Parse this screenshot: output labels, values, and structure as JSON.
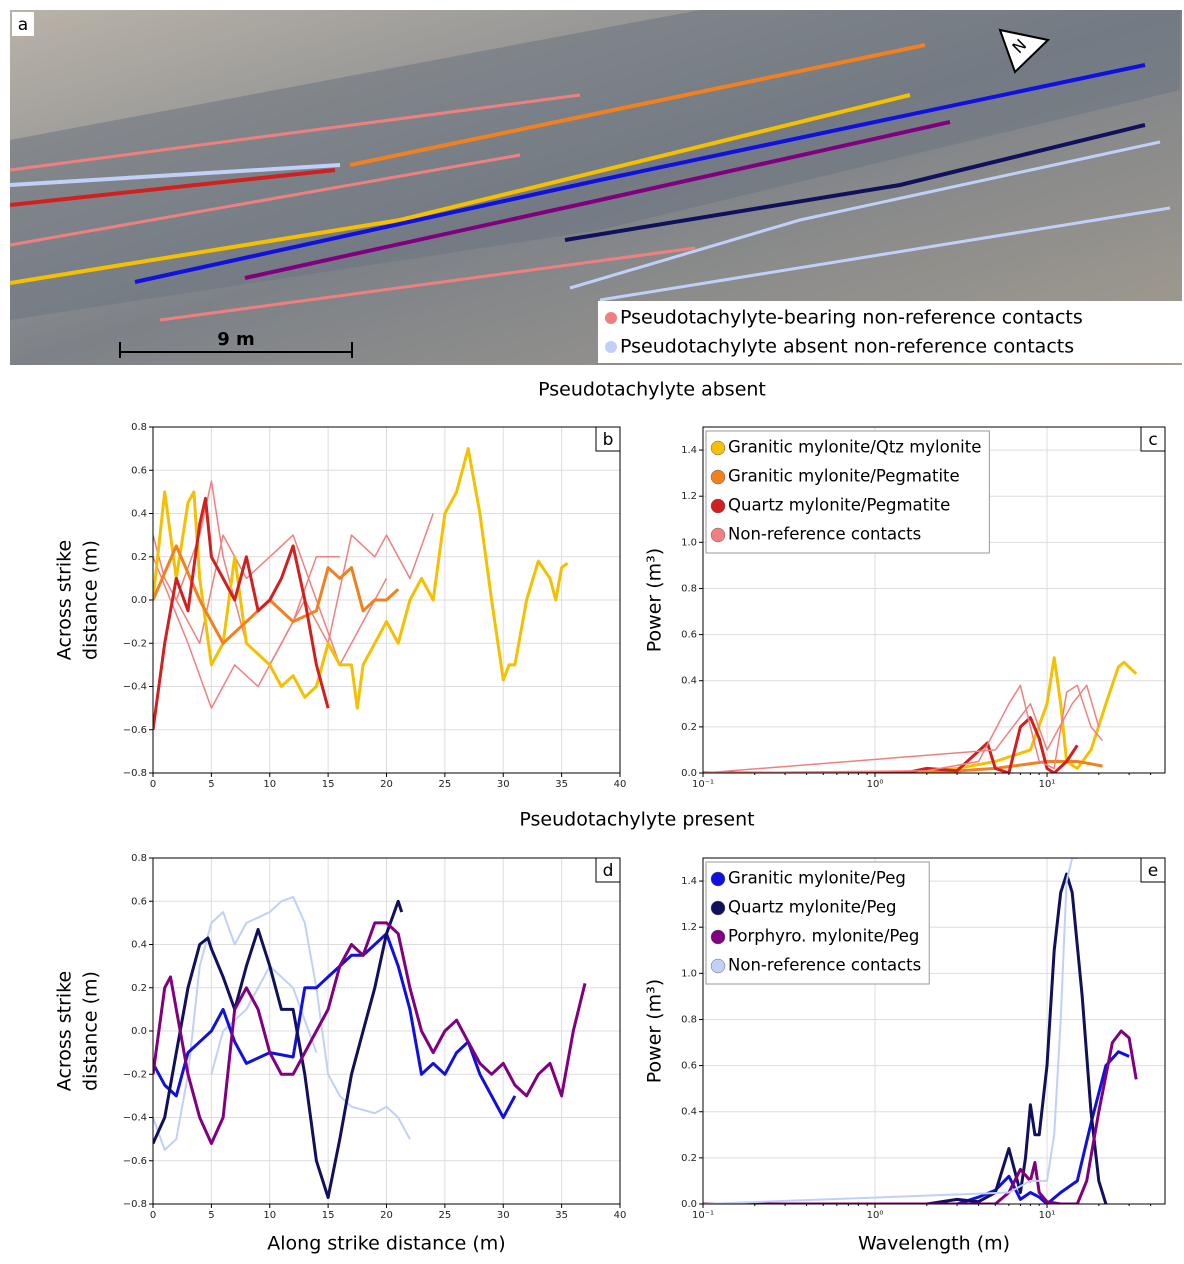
{
  "photo": {
    "label": "a",
    "north": "N",
    "scale": "9 m",
    "legend": [
      {
        "text": "Pseudotachylyte-bearing  non-reference contacts",
        "color": "#f08080"
      },
      {
        "text": "Pseudotachylyte absent non-reference contacts",
        "color": "#c0d0f8"
      }
    ]
  },
  "sections": [
    "Pseudotachylyte absent",
    "Pseudotachylyte present"
  ],
  "chart_data": [
    {
      "type": "line",
      "label": "b",
      "ylabel": [
        "Across strike",
        "distance (m)"
      ],
      "xlim": [
        0,
        40
      ],
      "xticks": [
        0,
        5,
        10,
        15,
        20,
        25,
        30,
        35,
        40
      ],
      "ylim": [
        -0.8,
        0.8
      ],
      "yticks": [
        {
          "value": -0.8,
          "label": "−0.8"
        },
        {
          "value": -0.6,
          "label": "−0.6"
        },
        {
          "value": -0.4,
          "label": "−0.4"
        },
        {
          "value": -0.2,
          "label": "−0.2"
        },
        {
          "value": 0,
          "label": "0.0"
        },
        0.2,
        0.4,
        0.6,
        0.8
      ],
      "grid": true,
      "series": [
        {
          "color": "#f08080",
          "linewidth": 1.5,
          "x": [
            0,
            1,
            2,
            4,
            5,
            6,
            8,
            10,
            12,
            14,
            16
          ],
          "values": [
            0.3,
            0.1,
            0.0,
            0.3,
            0.55,
            0.2,
            -0.2,
            -0.3,
            -0.1,
            0.2,
            0.2
          ]
        },
        {
          "color": "#f08080",
          "linewidth": 1.5,
          "x": [
            0,
            3,
            5,
            7,
            9,
            11,
            13,
            15,
            17,
            19,
            20,
            22,
            24
          ],
          "values": [
            0.2,
            -0.2,
            -0.5,
            -0.3,
            -0.4,
            -0.2,
            0.0,
            -0.2,
            0.3,
            0.2,
            0.3,
            0.1,
            0.4
          ]
        },
        {
          "color": "#f08080",
          "linewidth": 1.5,
          "x": [
            2,
            4,
            6,
            8,
            10,
            12,
            14,
            16,
            18,
            20
          ],
          "values": [
            0.0,
            -0.2,
            0.3,
            0.1,
            0.2,
            0.3,
            0.0,
            -0.3,
            -0.1,
            0.1
          ]
        },
        {
          "color": "#f5c000",
          "linewidth": 3,
          "x": [
            0,
            1,
            2,
            3,
            3.5,
            4,
            5,
            6,
            7,
            8,
            10,
            11,
            12,
            13,
            14,
            15,
            16,
            17,
            17.5,
            18,
            19,
            20,
            21,
            22,
            23,
            24,
            25,
            26,
            27,
            28,
            29,
            30,
            30.5,
            31,
            32,
            33,
            34,
            34.5,
            35,
            35.5
          ],
          "values": [
            0.0,
            0.5,
            0.1,
            0.45,
            0.5,
            0.1,
            -0.3,
            -0.2,
            0.2,
            -0.2,
            -0.3,
            -0.4,
            -0.35,
            -0.45,
            -0.4,
            -0.2,
            -0.3,
            -0.3,
            -0.5,
            -0.3,
            -0.2,
            -0.1,
            -0.2,
            0.0,
            0.1,
            0.0,
            0.4,
            0.5,
            0.7,
            0.4,
            0.0,
            -0.37,
            -0.3,
            -0.3,
            0.0,
            0.18,
            0.1,
            0.0,
            0.15,
            0.17
          ]
        },
        {
          "color": "#f08020",
          "linewidth": 3,
          "x": [
            0,
            2,
            4,
            6,
            8,
            10,
            12,
            14,
            15,
            16,
            17,
            18,
            19,
            20,
            21
          ],
          "values": [
            0.0,
            0.25,
            0.0,
            -0.2,
            -0.1,
            0.0,
            -0.1,
            -0.05,
            0.15,
            0.1,
            0.15,
            -0.05,
            0.0,
            0.0,
            0.05
          ]
        },
        {
          "color": "#d02020",
          "linewidth": 3,
          "x": [
            0,
            1,
            2,
            3,
            4,
            4.5,
            5,
            6,
            7,
            8,
            9,
            10,
            11,
            12,
            13,
            14,
            15
          ],
          "values": [
            -0.6,
            -0.2,
            0.1,
            -0.05,
            0.35,
            0.47,
            0.2,
            0.1,
            0.0,
            0.2,
            -0.05,
            0.0,
            0.1,
            0.25,
            0.0,
            -0.3,
            -0.5
          ]
        }
      ]
    },
    {
      "type": "line",
      "label": "c",
      "ylabel": [
        "Power (m³)"
      ],
      "xscale": "log",
      "legend": "upper left",
      "xlim": [
        0.1,
        48.5
      ],
      "xticks": [
        {
          "value": 0.1,
          "label": "10⁻¹"
        },
        {
          "value": 1,
          "label": "10⁰"
        },
        {
          "value": 10,
          "label": "10¹"
        }
      ],
      "ylim": [
        0,
        1.5
      ],
      "yticks": [
        {
          "value": 0,
          "label": "0.0"
        },
        0.2,
        0.4,
        0.6,
        0.8,
        {
          "value": 1,
          "label": "1.0"
        },
        1.2,
        1.4
      ],
      "grid": true,
      "series": [
        {
          "name": "Granitic mylonite/Qtz mylonite",
          "color": "#f5c000",
          "linewidth": 3,
          "x": [
            0.1,
            1,
            2,
            3,
            5,
            8,
            10,
            11,
            12,
            13,
            15,
            18,
            22,
            26,
            28,
            33
          ],
          "values": [
            0,
            0,
            0.005,
            0.02,
            0.05,
            0.1,
            0.3,
            0.5,
            0.3,
            0.05,
            0.02,
            0.1,
            0.3,
            0.46,
            0.48,
            0.43
          ]
        },
        {
          "name": "Granitic mylonite/Pegmatite",
          "color": "#f08020",
          "linewidth": 3,
          "x": [
            0.1,
            2,
            5,
            10,
            15,
            18,
            21
          ],
          "values": [
            0,
            0,
            0.02,
            0.05,
            0.05,
            0.04,
            0.03
          ]
        },
        {
          "name": "Quartz mylonite/Pegmatite",
          "color": "#d02020",
          "linewidth": 3,
          "x": [
            0.1,
            1.5,
            2,
            3,
            4.5,
            5,
            6,
            7,
            8,
            9,
            10,
            11,
            13,
            15
          ],
          "values": [
            0,
            0,
            0.02,
            0.01,
            0.13,
            0.02,
            0,
            0.2,
            0.24,
            0.15,
            0.02,
            0,
            0.05,
            0.12
          ]
        },
        {
          "name": "Non-reference contacts",
          "color": "#f08080",
          "linewidth": 1.5,
          "x": [
            0.1,
            2,
            4,
            6,
            7,
            8,
            9,
            11,
            13,
            15,
            18,
            21
          ],
          "values": [
            0,
            0.01,
            0.05,
            0.3,
            0.38,
            0.2,
            0.05,
            0.02,
            0.35,
            0.38,
            0.2,
            0.14
          ]
        },
        {
          "color": "#f08080",
          "linewidth": 1.5,
          "x": [
            0.1,
            5,
            8,
            10,
            14,
            17,
            20
          ],
          "values": [
            0,
            0.1,
            0.3,
            0.1,
            0.3,
            0.38,
            0.2
          ]
        }
      ]
    },
    {
      "type": "line",
      "label": "d",
      "ylabel": [
        "Across strike",
        "distance (m)"
      ],
      "xlabel": "Along strike distance (m)",
      "xlim": [
        0,
        40
      ],
      "xticks": [
        0,
        5,
        10,
        15,
        20,
        25,
        30,
        35,
        40
      ],
      "ylim": [
        -0.8,
        0.8
      ],
      "yticks": [
        {
          "value": -0.8,
          "label": "−0.8"
        },
        {
          "value": -0.6,
          "label": "−0.6"
        },
        {
          "value": -0.4,
          "label": "−0.4"
        },
        {
          "value": -0.2,
          "label": "−0.2"
        },
        {
          "value": 0,
          "label": "0.0"
        },
        0.2,
        0.4,
        0.6,
        0.8
      ],
      "grid": true,
      "series": [
        {
          "color": "#c0d0f8",
          "linewidth": 2,
          "x": [
            0,
            1,
            2,
            3,
            4,
            5,
            6,
            7,
            8,
            10,
            11,
            12,
            13,
            14,
            15,
            16,
            17,
            19,
            20,
            21,
            22
          ],
          "values": [
            -0.4,
            -0.55,
            -0.5,
            -0.2,
            0.3,
            0.5,
            0.55,
            0.4,
            0.5,
            0.55,
            0.6,
            0.62,
            0.5,
            0.2,
            -0.2,
            -0.3,
            -0.35,
            -0.38,
            -0.35,
            -0.4,
            -0.5
          ]
        },
        {
          "color": "#c0d0f8",
          "linewidth": 2,
          "x": [
            5,
            6,
            8,
            10,
            12,
            14
          ],
          "values": [
            -0.2,
            0.0,
            0.1,
            0.3,
            0.2,
            -0.1
          ]
        },
        {
          "color": "#1010e0",
          "linewidth": 3,
          "x": [
            0,
            1,
            2,
            3,
            4,
            5,
            6,
            7,
            8,
            10,
            12,
            13,
            14,
            15,
            16,
            17,
            18,
            19,
            20,
            21,
            22,
            23,
            24,
            25,
            26,
            27,
            28,
            29,
            30,
            31
          ],
          "values": [
            -0.15,
            -0.25,
            -0.3,
            -0.1,
            -0.05,
            0.0,
            0.1,
            -0.05,
            -0.15,
            -0.1,
            -0.12,
            0.2,
            0.2,
            0.25,
            0.3,
            0.35,
            0.35,
            0.4,
            0.45,
            0.3,
            0.1,
            -0.2,
            -0.15,
            -0.2,
            -0.1,
            -0.05,
            -0.2,
            -0.3,
            -0.4,
            -0.3
          ]
        },
        {
          "color": "#10105c",
          "linewidth": 3,
          "x": [
            0,
            1,
            2,
            3,
            4,
            4.7,
            5,
            6,
            7,
            8,
            9,
            10,
            11,
            12,
            13,
            14,
            15,
            16,
            17,
            18,
            19,
            20,
            21,
            21.3
          ],
          "values": [
            -0.52,
            -0.4,
            -0.1,
            0.2,
            0.4,
            0.43,
            0.38,
            0.25,
            0.1,
            0.3,
            0.47,
            0.3,
            0.1,
            0.1,
            -0.2,
            -0.6,
            -0.77,
            -0.5,
            -0.2,
            0.0,
            0.2,
            0.45,
            0.6,
            0.55
          ]
        },
        {
          "color": "#800080",
          "linewidth": 3,
          "x": [
            0,
            1,
            1.5,
            2,
            3,
            4,
            5,
            6,
            7,
            8,
            9,
            10,
            11,
            12,
            13,
            14,
            15,
            16,
            17,
            18,
            19,
            20,
            21,
            22,
            23,
            24,
            25,
            26,
            27,
            28,
            29,
            30,
            31,
            32,
            33,
            34,
            35,
            36,
            37
          ],
          "values": [
            -0.2,
            0.2,
            0.25,
            0.1,
            -0.2,
            -0.4,
            -0.52,
            -0.4,
            0.1,
            0.2,
            0.1,
            -0.1,
            -0.2,
            -0.2,
            -0.1,
            0.0,
            0.1,
            0.3,
            0.4,
            0.35,
            0.5,
            0.5,
            0.45,
            0.2,
            0.0,
            -0.1,
            0.0,
            0.05,
            -0.05,
            -0.15,
            -0.2,
            -0.15,
            -0.25,
            -0.3,
            -0.2,
            -0.15,
            -0.3,
            0.0,
            0.22
          ]
        }
      ]
    },
    {
      "type": "line",
      "label": "e",
      "ylabel": [
        "Power (m³)"
      ],
      "xlabel": "Wavelength (m)",
      "xscale": "log",
      "legend": "upper left",
      "xlim": [
        0.1,
        48.5
      ],
      "xticks": [
        {
          "value": 0.1,
          "label": "10⁻¹"
        },
        {
          "value": 1,
          "label": "10⁰"
        },
        {
          "value": 10,
          "label": "10¹"
        }
      ],
      "ylim": [
        0,
        1.5
      ],
      "yticks": [
        {
          "value": 0,
          "label": "0.0"
        },
        0.2,
        0.4,
        0.6,
        0.8,
        {
          "value": 1,
          "label": "1.0"
        },
        1.2,
        1.4
      ],
      "grid": true,
      "series": [
        {
          "name": "Granitic mylonite/Peg",
          "color": "#1010e0",
          "linewidth": 3,
          "x": [
            0.1,
            3,
            4,
            5,
            6,
            7,
            8,
            9,
            10,
            12,
            15,
            18,
            22,
            26,
            30
          ],
          "values": [
            0,
            0,
            0.03,
            0.06,
            0.12,
            0.02,
            0.05,
            0.03,
            0,
            0.05,
            0.1,
            0.35,
            0.6,
            0.66,
            0.64
          ]
        },
        {
          "name": "Quartz mylonite/Peg",
          "color": "#10105c",
          "linewidth": 3,
          "x": [
            0.1,
            2,
            3,
            4,
            5,
            6,
            7,
            7.5,
            8,
            8.5,
            9,
            10,
            11,
            12,
            13,
            14,
            16,
            18,
            20,
            22
          ],
          "values": [
            0,
            0,
            0.02,
            0.01,
            0.05,
            0.24,
            0.05,
            0.2,
            0.43,
            0.3,
            0.3,
            0.6,
            1.1,
            1.35,
            1.43,
            1.35,
            0.9,
            0.4,
            0.1,
            0
          ]
        },
        {
          "name": "Porphyro. mylonite/Peg",
          "color": "#800080",
          "linewidth": 3,
          "x": [
            0.1,
            5,
            6,
            7,
            8,
            8.5,
            9,
            10,
            12,
            15,
            17,
            20,
            24,
            27,
            30,
            33
          ],
          "values": [
            0,
            0,
            0.05,
            0.15,
            0.1,
            0.18,
            0.05,
            0.01,
            0,
            0,
            0.1,
            0.4,
            0.7,
            0.75,
            0.72,
            0.54
          ]
        },
        {
          "name": "Non-reference contacts",
          "color": "#c0d0f8",
          "linewidth": 2,
          "x": [
            0.1,
            6,
            8,
            10,
            11,
            12,
            13,
            14,
            15
          ],
          "values": [
            0,
            0.05,
            0.1,
            0.1,
            0.3,
            0.8,
            1.4,
            1.5,
            1.5
          ]
        }
      ]
    }
  ]
}
